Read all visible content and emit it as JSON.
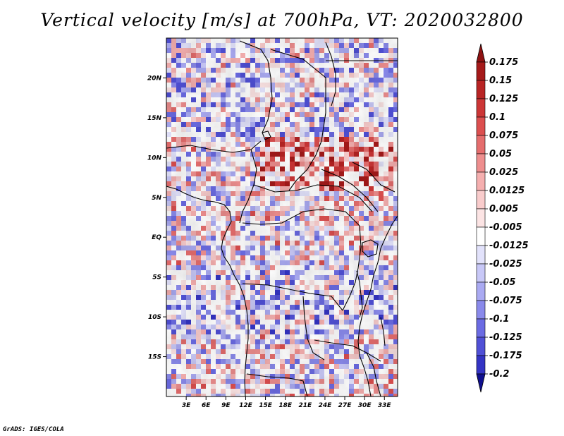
{
  "title": "Vertical velocity [m/s] at 700hPa, VT: 2020032800",
  "footer": "GrADS: IGES/COLA",
  "map": {
    "variable": "Vertical velocity",
    "units": "m/s",
    "level": "700hPa",
    "valid_time": "2020032800",
    "lon_range": [
      0,
      35
    ],
    "lat_range": [
      -20,
      25
    ],
    "lat_ticks": [
      {
        "value": 20,
        "label": "20N"
      },
      {
        "value": 15,
        "label": "15N"
      },
      {
        "value": 10,
        "label": "10N"
      },
      {
        "value": 5,
        "label": "5N"
      },
      {
        "value": 0,
        "label": "EQ"
      },
      {
        "value": -5,
        "label": "5S"
      },
      {
        "value": -10,
        "label": "10S"
      },
      {
        "value": -15,
        "label": "15S"
      }
    ],
    "lon_ticks": [
      {
        "value": 3,
        "label": "3E"
      },
      {
        "value": 6,
        "label": "6E"
      },
      {
        "value": 9,
        "label": "9E"
      },
      {
        "value": 12,
        "label": "12E"
      },
      {
        "value": 15,
        "label": "15E"
      },
      {
        "value": 18,
        "label": "18E"
      },
      {
        "value": 21,
        "label": "21E"
      },
      {
        "value": 24,
        "label": "24E"
      },
      {
        "value": 27,
        "label": "27E"
      },
      {
        "value": 30,
        "label": "30E"
      },
      {
        "value": 33,
        "label": "33E"
      }
    ]
  },
  "colorbar": {
    "levels": [
      {
        "label": "0.175",
        "color": "#a51a1a"
      },
      {
        "label": "0.15",
        "color": "#b82424"
      },
      {
        "label": "0.125",
        "color": "#cc3636"
      },
      {
        "label": "0.1",
        "color": "#dc4f4f"
      },
      {
        "label": "0.075",
        "color": "#e56d6d"
      },
      {
        "label": "0.05",
        "color": "#ee8e8e"
      },
      {
        "label": "0.025",
        "color": "#f5afaf"
      },
      {
        "label": "0.0125",
        "color": "#f9cccc"
      },
      {
        "label": "0.005",
        "color": "#fce4e4"
      },
      {
        "label": "-0.005",
        "color": "#ffffff"
      },
      {
        "label": "-0.0125",
        "color": "#e2e2fb"
      },
      {
        "label": "-0.025",
        "color": "#c8c8f7"
      },
      {
        "label": "-0.05",
        "color": "#aaaaf2"
      },
      {
        "label": "-0.075",
        "color": "#8a8aeb"
      },
      {
        "label": "-0.1",
        "color": "#6b6be3"
      },
      {
        "label": "-0.125",
        "color": "#5050d6"
      },
      {
        "label": "-0.175",
        "color": "#3434c4"
      },
      {
        "label": "-0.2",
        "color": "#1e1eae"
      }
    ],
    "top_color": "#8e1212",
    "bottom_color": "#0f0f8f"
  }
}
